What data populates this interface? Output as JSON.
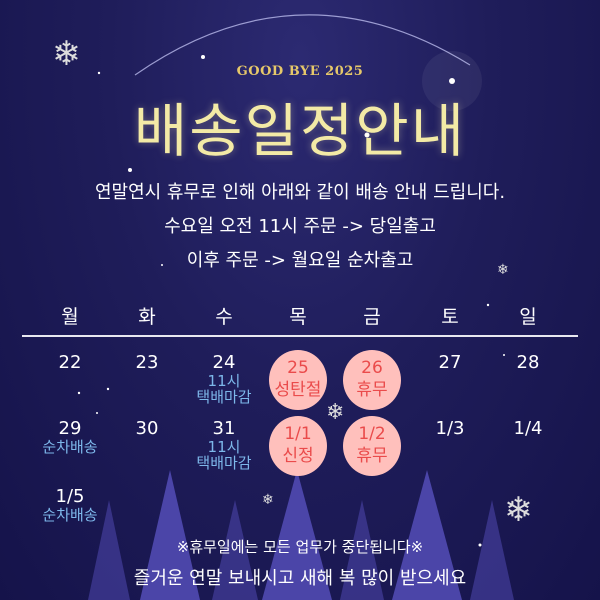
{
  "header": {
    "subtitle": "GOOD BYE 2025",
    "title": "배송일정안내"
  },
  "intro": {
    "line1": "연말연시 휴무로 인해 아래와 같이 배송 안내 드립니다.",
    "line2": "수요일 오전 11시 주문 -> 당일출고",
    "line3": "이후 주문 -> 월요일 순차출고"
  },
  "weekdays": [
    "월",
    "화",
    "수",
    "목",
    "금",
    "토",
    "일"
  ],
  "calendar": {
    "rows": [
      [
        {
          "date": "22"
        },
        {
          "date": "23"
        },
        {
          "date": "24",
          "note1": "11시",
          "note2": "택배마감"
        },
        {
          "date": "25",
          "holiday": "성탄절"
        },
        {
          "date": "26",
          "holiday": "휴무"
        },
        {
          "date": "27"
        },
        {
          "date": "28"
        }
      ],
      [
        {
          "date": "29",
          "note1": "순차배송"
        },
        {
          "date": "30"
        },
        {
          "date": "31",
          "note1": "11시",
          "note2": "택배마감"
        },
        {
          "date": "1/1",
          "holiday": "신정"
        },
        {
          "date": "1/2",
          "holiday": "휴무"
        },
        {
          "date": "1/3"
        },
        {
          "date": "1/4"
        }
      ],
      [
        {
          "date": "1/5",
          "note1": "순차배송"
        }
      ]
    ]
  },
  "footer": {
    "notice": "※휴무일에는 모든 업무가 중단됩니다※",
    "greeting": "즐거운 연말 보내시고 새해 복 많이 받으세요"
  },
  "colors": {
    "background": "#1f1d5a",
    "title": "#f3eaa6",
    "holiday_circle": "#ffc0bc",
    "holiday_text": "#ea4b4b",
    "note": "#7db7ea",
    "tree": "#4b45a8"
  }
}
